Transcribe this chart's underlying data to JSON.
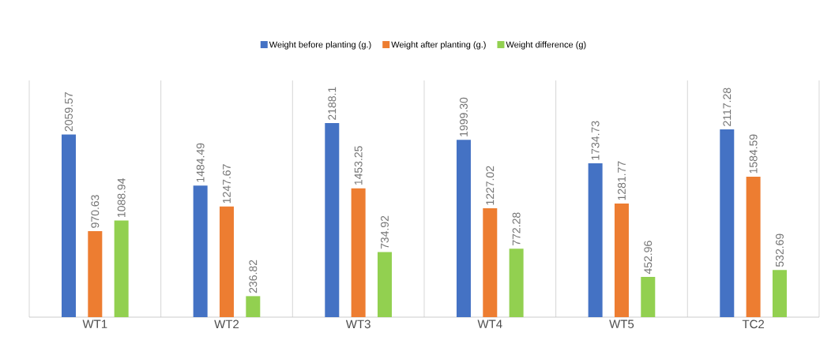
{
  "chart_data": {
    "type": "bar",
    "categories": [
      "WT1",
      "WT2",
      "WT3",
      "WT4",
      "WT5",
      "TC2"
    ],
    "series": [
      {
        "name": "Weight before planting (g.)",
        "color": "#4472c4",
        "values": [
          2059.57,
          1484.49,
          2188.1,
          1999.3,
          1734.73,
          2117.28
        ],
        "value_labels": [
          "2059.57",
          "1484.49",
          "2188.1",
          "1999.30",
          "1734.73",
          "2117.28"
        ]
      },
      {
        "name": "Weight after planting (g.)",
        "color": "#ed7d31",
        "values": [
          970.63,
          1247.67,
          1453.25,
          1227.02,
          1281.77,
          1584.59
        ],
        "value_labels": [
          "970.63",
          "1247.67",
          "1453.25",
          "1227.02",
          "1281.77",
          "1584.59"
        ]
      },
      {
        "name": "Weight difference (g)",
        "color": "#92d050",
        "values": [
          1088.94,
          236.82,
          734.92,
          772.28,
          452.96,
          532.69
        ],
        "value_labels": [
          "1088.94",
          "236.82",
          "734.92",
          "772.28",
          "452.96",
          "532.69"
        ]
      }
    ],
    "legend": "top"
  }
}
